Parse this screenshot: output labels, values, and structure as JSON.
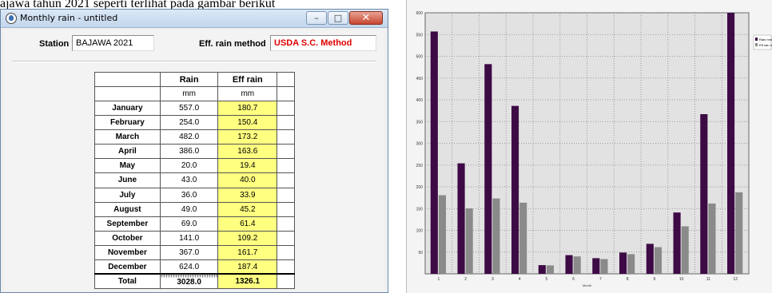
{
  "doc": {
    "title_fragment": "ajawa tahun 2021 seperti terlihat pada gambar berikut"
  },
  "window": {
    "title": "Monthly rain - untitled",
    "buttons": {
      "minimize": "–",
      "maximize": "□",
      "close": "✕"
    }
  },
  "form": {
    "station_label": "Station",
    "station_value": "BAJAWA 2021",
    "eff_label": "Eff. rain method",
    "eff_value": "USDA S.C. Method"
  },
  "table": {
    "headers": [
      "",
      "Rain",
      "Eff rain"
    ],
    "units": [
      "",
      "mm",
      "mm"
    ],
    "rows": [
      {
        "month": "January",
        "rain": "557.0",
        "eff": "180.7"
      },
      {
        "month": "February",
        "rain": "254.0",
        "eff": "150.4"
      },
      {
        "month": "March",
        "rain": "482.0",
        "eff": "173.2"
      },
      {
        "month": "April",
        "rain": "386.0",
        "eff": "163.6"
      },
      {
        "month": "May",
        "rain": "20.0",
        "eff": "19.4"
      },
      {
        "month": "June",
        "rain": "43.0",
        "eff": "40.0"
      },
      {
        "month": "July",
        "rain": "36.0",
        "eff": "33.9"
      },
      {
        "month": "August",
        "rain": "49.0",
        "eff": "45.2"
      },
      {
        "month": "September",
        "rain": "69.0",
        "eff": "61.4"
      },
      {
        "month": "October",
        "rain": "141.0",
        "eff": "109.2"
      },
      {
        "month": "November",
        "rain": "367.0",
        "eff": "161.7"
      },
      {
        "month": "December",
        "rain": "624.0",
        "eff": "187.4"
      }
    ],
    "total": {
      "label": "Total",
      "rain": "3028.0",
      "eff": "1326.1"
    }
  },
  "chart_data": {
    "type": "bar",
    "categories": [
      "1",
      "2",
      "3",
      "4",
      "5",
      "6",
      "7",
      "8",
      "9",
      "10",
      "11",
      "12"
    ],
    "series": [
      {
        "name": "Rain mm",
        "values": [
          557.0,
          254.0,
          482.0,
          386.0,
          20.0,
          43.0,
          36.0,
          49.0,
          69.0,
          141.0,
          367.0,
          624.0
        ],
        "color": "#3d0a45"
      },
      {
        "name": "Eff rain mm",
        "values": [
          180.7,
          150.4,
          173.2,
          163.6,
          19.4,
          40.0,
          33.9,
          45.2,
          61.4,
          109.2,
          161.7,
          187.4
        ],
        "color": "#8a8a8a"
      }
    ],
    "ylim": [
      0,
      600
    ],
    "yticks": [
      50,
      100,
      150,
      200,
      250,
      300,
      350,
      400,
      450,
      500,
      550,
      600
    ],
    "xlabel": "Month",
    "ylabel": "",
    "grid": true,
    "legend": "right"
  }
}
